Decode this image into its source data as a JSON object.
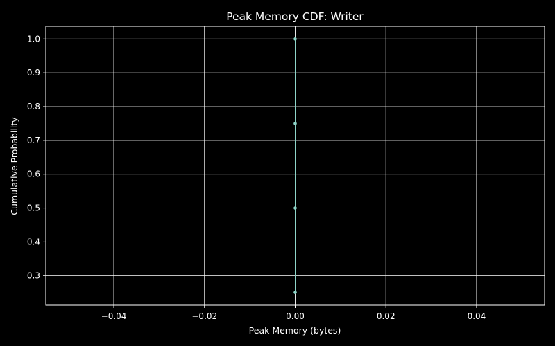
{
  "colors": {
    "background": "#000000",
    "grid": "#ffffff",
    "axes": "#ffffff",
    "text": "#ffffff",
    "series": "#8dd3c7"
  },
  "chart_data": {
    "type": "line",
    "title": "Peak Memory CDF: Writer",
    "xlabel": "Peak Memory (bytes)",
    "ylabel": "Cumulative Probability",
    "xlim": [
      -0.055,
      0.055
    ],
    "ylim": [
      0.2125,
      1.0375
    ],
    "grid": true,
    "markers": true,
    "x_ticks": [
      -0.04,
      -0.02,
      0.0,
      0.02,
      0.04
    ],
    "x_tick_labels": [
      "−0.04",
      "−0.02",
      "0.00",
      "0.02",
      "0.04"
    ],
    "y_ticks": [
      0.3,
      0.4,
      0.5,
      0.6,
      0.7,
      0.8,
      0.9,
      1.0
    ],
    "y_tick_labels": [
      "0.3",
      "0.4",
      "0.5",
      "0.6",
      "0.7",
      "0.8",
      "0.9",
      "1.0"
    ],
    "series": [
      {
        "x": [
          0,
          0,
          0,
          0
        ],
        "y": [
          0.25,
          0.5,
          0.75,
          1.0
        ]
      }
    ]
  }
}
